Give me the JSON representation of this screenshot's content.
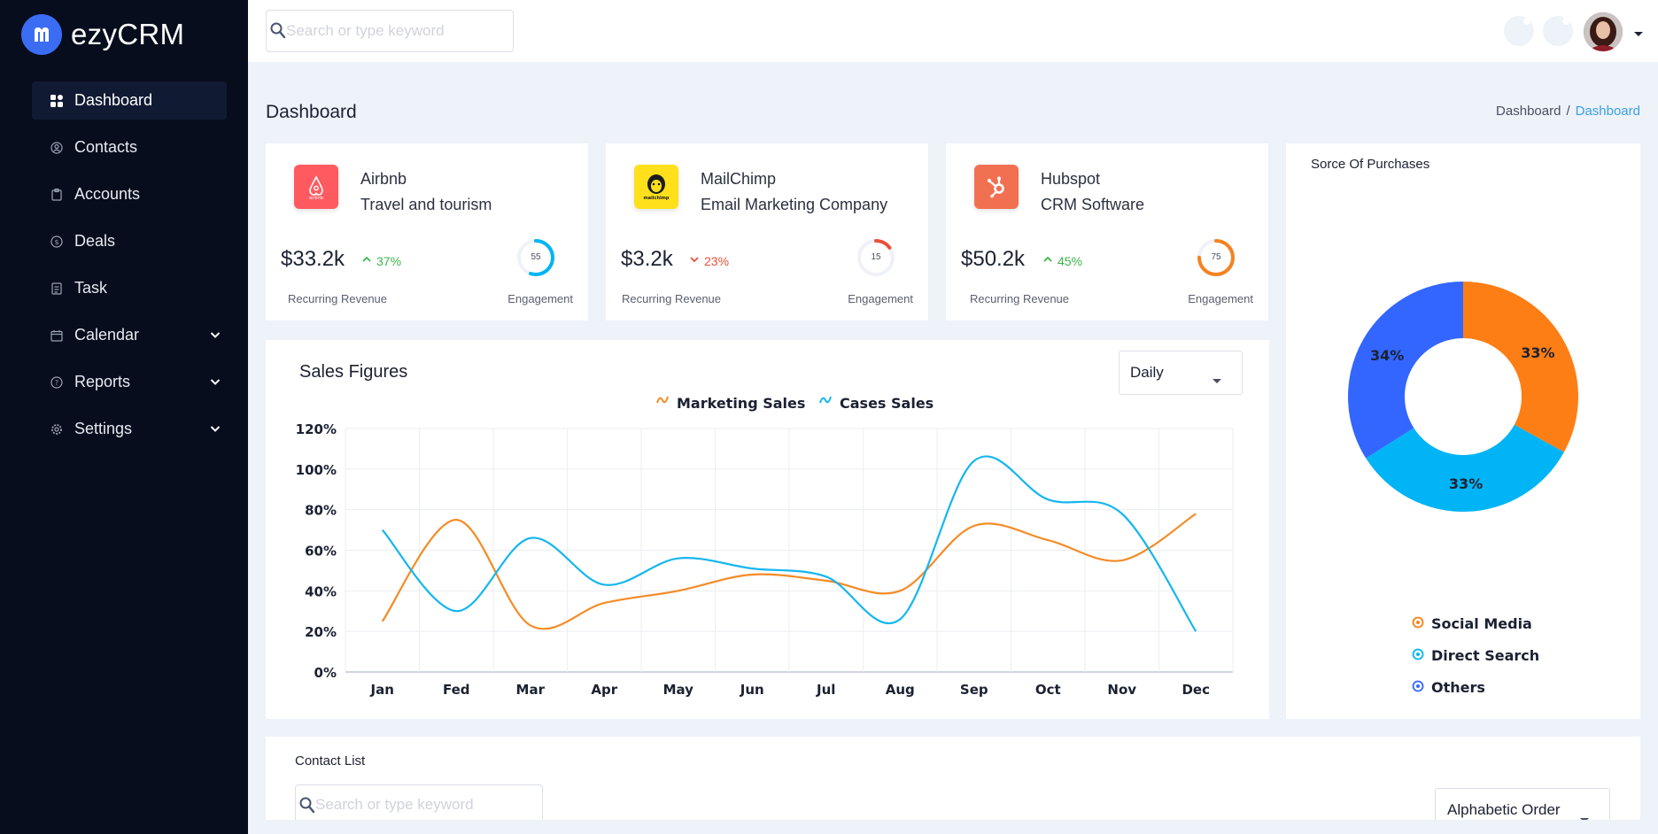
{
  "app": {
    "name": "ezyCRM"
  },
  "search": {
    "placeholder": "Search or type keyword"
  },
  "sidebar": {
    "items": [
      {
        "label": "Dashboard",
        "icon": "dashboard-icon",
        "active": true
      },
      {
        "label": "Contacts",
        "icon": "contacts-icon"
      },
      {
        "label": "Accounts",
        "icon": "accounts-icon"
      },
      {
        "label": "Deals",
        "icon": "deals-icon"
      },
      {
        "label": "Task",
        "icon": "task-icon"
      },
      {
        "label": "Calendar",
        "icon": "calendar-icon",
        "expandable": true
      },
      {
        "label": "Reports",
        "icon": "reports-icon",
        "expandable": true
      },
      {
        "label": "Settings",
        "icon": "settings-icon",
        "expandable": true
      }
    ]
  },
  "page": {
    "title": "Dashboard",
    "breadcrumb": [
      "Dashboard",
      "/",
      "Dashboard"
    ]
  },
  "companies": [
    {
      "name": "Airbnb",
      "sub": "Travel and tourism",
      "revenue": "$33.2k",
      "change": "37%",
      "direction": "up",
      "engagement": "55",
      "revenue_label": "Recurring Revenue",
      "engagement_label": "Engagement",
      "logo_color": "#ff5a5f",
      "ring_color": "#00b4f5"
    },
    {
      "name": "MailChimp",
      "sub": "Email Marketing Company",
      "revenue": "$3.2k",
      "change": "23%",
      "direction": "down",
      "engagement": "15",
      "revenue_label": "Recurring Revenue",
      "engagement_label": "Engagement",
      "logo_color": "#ffe01b",
      "logo_text": "mailchimp",
      "ring_color": "#e8513a"
    },
    {
      "name": "Hubspot",
      "sub": "CRM Software",
      "revenue": "$50.2k",
      "change": "45%",
      "direction": "up",
      "engagement": "75",
      "revenue_label": "Recurring Revenue",
      "engagement_label": "Engagement",
      "logo_color": "#f27052",
      "ring_color": "#f58220"
    }
  ],
  "sales": {
    "title": "Sales Figures",
    "period": "Daily"
  },
  "chart_data": [
    {
      "type": "line",
      "categories": [
        "Jan",
        "Fed",
        "Mar",
        "Apr",
        "May",
        "Jun",
        "Jul",
        "Aug",
        "Sep",
        "Oct",
        "Nov",
        "Dec"
      ],
      "series": [
        {
          "name": "Marketing Sales",
          "color": "#f58b25",
          "values": [
            25,
            75,
            23,
            34,
            40,
            48,
            45,
            40,
            72,
            65,
            55,
            78
          ]
        },
        {
          "name": "Cases Sales",
          "color": "#15b6ef",
          "values": [
            70,
            30,
            66,
            43,
            56,
            51,
            47,
            26,
            104,
            85,
            78,
            20
          ]
        }
      ],
      "yticks": [
        "0%",
        "20%",
        "40%",
        "60%",
        "80%",
        "100%",
        "120%"
      ],
      "ylim": [
        0,
        120
      ],
      "grid": true,
      "legend": "top-center",
      "smooth": true
    },
    {
      "type": "pie",
      "title": "Sorce Of Purchases",
      "labels": [
        "Social Media",
        "Direct Search",
        "Others"
      ],
      "values": [
        33,
        33,
        34
      ],
      "colors": [
        "#fd7e14",
        "#00b4f5",
        "#3366ff"
      ],
      "display_labels": [
        "33%",
        "33%",
        "34%"
      ],
      "donut": true,
      "legend": "bottom"
    }
  ],
  "contacts": {
    "title": "Contact List",
    "search_placeholder": "Search or type keyword",
    "order": "Alphabetic Order"
  }
}
